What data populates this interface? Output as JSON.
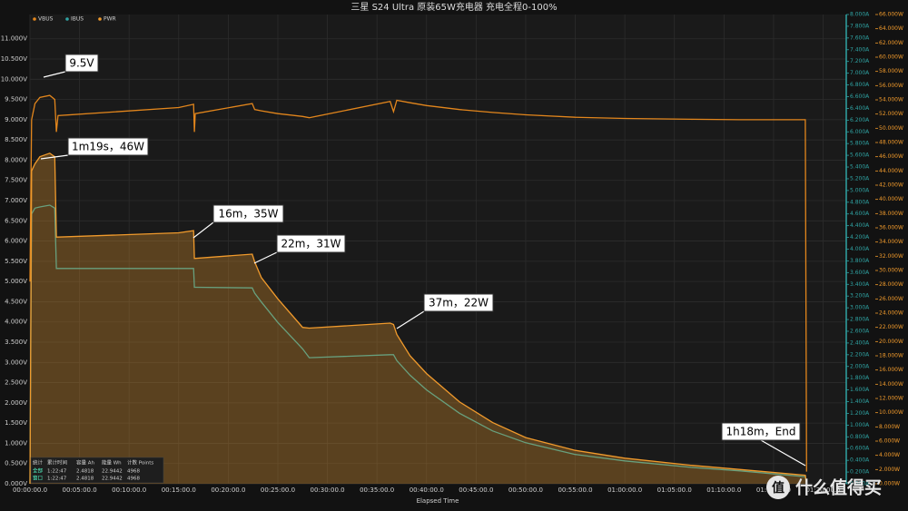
{
  "chart_data": {
    "type": "line",
    "title": "三星 S24 Ultra 原装65W充电器 充电全程0-100%",
    "x_label": "Elapsed Time",
    "x": [
      0,
      10,
      30,
      60,
      120,
      150,
      160,
      170,
      900,
      990,
      995,
      1000,
      1345,
      1360,
      1400,
      1500,
      1650,
      1690,
      2180,
      2200,
      2220,
      2300,
      2400,
      2600,
      2800,
      3000,
      3300,
      3600,
      4000,
      4300,
      4692,
      4700
    ],
    "xlim": [
      0,
      4940
    ],
    "xticks": [
      {
        "value": 0,
        "label": "00:00:00.0"
      },
      {
        "value": 300,
        "label": "00:05:00.0"
      },
      {
        "value": 600,
        "label": "00:10:00.0"
      },
      {
        "value": 900,
        "label": "00:15:00.0"
      },
      {
        "value": 1200,
        "label": "00:20:00.0"
      },
      {
        "value": 1500,
        "label": "00:25:00.0"
      },
      {
        "value": 1800,
        "label": "00:30:00.0"
      },
      {
        "value": 2100,
        "label": "00:35:00.0"
      },
      {
        "value": 2400,
        "label": "00:40:00.0"
      },
      {
        "value": 2700,
        "label": "00:45:00.0"
      },
      {
        "value": 3000,
        "label": "00:50:00.0"
      },
      {
        "value": 3300,
        "label": "00:55:00.0"
      },
      {
        "value": 3600,
        "label": "01:00:00.0"
      },
      {
        "value": 3900,
        "label": "01:05:00.0"
      },
      {
        "value": 4200,
        "label": "01:10:00.0"
      },
      {
        "value": 4500,
        "label": "01:15:00.0"
      },
      {
        "value": 4800,
        "label": "01:20:00.0"
      }
    ],
    "ylim": [
      0,
      11.6
    ],
    "yticks": [
      {
        "value": 0,
        "label": "0.000V"
      },
      {
        "value": 0.5,
        "label": "0.500V"
      },
      {
        "value": 1,
        "label": "1.000V"
      },
      {
        "value": 1.5,
        "label": "1.500V"
      },
      {
        "value": 2,
        "label": "2.000V"
      },
      {
        "value": 2.5,
        "label": "2.500V"
      },
      {
        "value": 3,
        "label": "3.000V"
      },
      {
        "value": 3.5,
        "label": "3.500V"
      },
      {
        "value": 4,
        "label": "4.000V"
      },
      {
        "value": 4.5,
        "label": "4.500V"
      },
      {
        "value": 5,
        "label": "5.000V"
      },
      {
        "value": 5.5,
        "label": "5.500V"
      },
      {
        "value": 6,
        "label": "6.000V"
      },
      {
        "value": 6.5,
        "label": "6.500V"
      },
      {
        "value": 7,
        "label": "7.000V"
      },
      {
        "value": 7.5,
        "label": "7.500V"
      },
      {
        "value": 8,
        "label": "8.000V"
      },
      {
        "value": 8.5,
        "label": "8.500V"
      },
      {
        "value": 9,
        "label": "9.000V"
      },
      {
        "value": 9.5,
        "label": "9.500V"
      },
      {
        "value": 10,
        "label": "10.000V"
      },
      {
        "value": 10.5,
        "label": "10.500V"
      },
      {
        "value": 11,
        "label": "11.000V"
      }
    ],
    "y2lim": [
      0,
      8
    ],
    "y2ticks": [
      {
        "value": 0,
        "label": "0.000A"
      },
      {
        "value": 0.2,
        "label": "0.200A"
      },
      {
        "value": 0.4,
        "label": "0.400A"
      },
      {
        "value": 0.6,
        "label": "0.600A"
      },
      {
        "value": 0.8,
        "label": "0.800A"
      },
      {
        "value": 1,
        "label": "1.000A"
      },
      {
        "value": 1.2,
        "label": "1.200A"
      },
      {
        "value": 1.4,
        "label": "1.400A"
      },
      {
        "value": 1.6,
        "label": "1.600A"
      },
      {
        "value": 1.8,
        "label": "1.800A"
      },
      {
        "value": 2,
        "label": "2.000A"
      },
      {
        "value": 2.2,
        "label": "2.200A"
      },
      {
        "value": 2.4,
        "label": "2.400A"
      },
      {
        "value": 2.6,
        "label": "2.600A"
      },
      {
        "value": 2.8,
        "label": "2.800A"
      },
      {
        "value": 3,
        "label": "3.000A"
      },
      {
        "value": 3.2,
        "label": "3.200A"
      },
      {
        "value": 3.4,
        "label": "3.400A"
      },
      {
        "value": 3.6,
        "label": "3.600A"
      },
      {
        "value": 3.8,
        "label": "3.800A"
      },
      {
        "value": 4,
        "label": "4.000A"
      },
      {
        "value": 4.2,
        "label": "4.200A"
      },
      {
        "value": 4.4,
        "label": "4.400A"
      },
      {
        "value": 4.6,
        "label": "4.600A"
      },
      {
        "value": 4.8,
        "label": "4.800A"
      },
      {
        "value": 5,
        "label": "5.000A"
      },
      {
        "value": 5.2,
        "label": "5.200A"
      },
      {
        "value": 5.4,
        "label": "5.400A"
      },
      {
        "value": 5.6,
        "label": "5.600A"
      },
      {
        "value": 5.8,
        "label": "5.800A"
      },
      {
        "value": 6,
        "label": "6.000A"
      },
      {
        "value": 6.2,
        "label": "6.200A"
      },
      {
        "value": 6.4,
        "label": "6.400A"
      },
      {
        "value": 6.6,
        "label": "6.600A"
      },
      {
        "value": 6.8,
        "label": "6.800A"
      },
      {
        "value": 7,
        "label": "7.000A"
      },
      {
        "value": 7.2,
        "label": "7.200A"
      },
      {
        "value": 7.4,
        "label": "7.400A"
      },
      {
        "value": 7.6,
        "label": "7.600A"
      },
      {
        "value": 7.8,
        "label": "7.800A"
      },
      {
        "value": 8,
        "label": "8.000A"
      }
    ],
    "y3lim": [
      0,
      66
    ],
    "y3ticks": [
      {
        "value": 0,
        "label": "0.000W"
      },
      {
        "value": 2,
        "label": "2.000W"
      },
      {
        "value": 4,
        "label": "4.000W"
      },
      {
        "value": 6,
        "label": "6.000W"
      },
      {
        "value": 8,
        "label": "8.000W"
      },
      {
        "value": 10,
        "label": "10.000W"
      },
      {
        "value": 12,
        "label": "12.000W"
      },
      {
        "value": 14,
        "label": "14.000W"
      },
      {
        "value": 16,
        "label": "16.000W"
      },
      {
        "value": 18,
        "label": "18.000W"
      },
      {
        "value": 20,
        "label": "20.000W"
      },
      {
        "value": 22,
        "label": "22.000W"
      },
      {
        "value": 24,
        "label": "24.000W"
      },
      {
        "value": 26,
        "label": "26.000W"
      },
      {
        "value": 28,
        "label": "28.000W"
      },
      {
        "value": 30,
        "label": "30.000W"
      },
      {
        "value": 32,
        "label": "32.000W"
      },
      {
        "value": 34,
        "label": "34.000W"
      },
      {
        "value": 36,
        "label": "36.000W"
      },
      {
        "value": 38,
        "label": "38.000W"
      },
      {
        "value": 40,
        "label": "40.000W"
      },
      {
        "value": 42,
        "label": "42.000W"
      },
      {
        "value": 44,
        "label": "44.000W"
      },
      {
        "value": 46,
        "label": "46.000W"
      },
      {
        "value": 48,
        "label": "48.000W"
      },
      {
        "value": 50,
        "label": "50.000W"
      },
      {
        "value": 52,
        "label": "52.000W"
      },
      {
        "value": 54,
        "label": "54.000W"
      },
      {
        "value": 56,
        "label": "56.000W"
      },
      {
        "value": 58,
        "label": "58.000W"
      },
      {
        "value": 60,
        "label": "60.000W"
      },
      {
        "value": 62,
        "label": "62.000W"
      },
      {
        "value": 64,
        "label": "64.000W"
      },
      {
        "value": 66,
        "label": "66.000W"
      }
    ],
    "grid": true,
    "series": [
      {
        "name": "VBUS",
        "color": "#e3861c",
        "values": [
          5.0,
          9.0,
          9.4,
          9.55,
          9.6,
          9.5,
          8.7,
          9.1,
          9.3,
          9.38,
          8.7,
          9.15,
          9.4,
          9.25,
          9.22,
          9.15,
          9.08,
          9.05,
          9.45,
          9.2,
          9.48,
          9.42,
          9.35,
          9.25,
          9.18,
          9.12,
          9.06,
          9.03,
          9.01,
          9.0,
          9.0,
          0.3
        ]
      },
      {
        "name": "IBUS",
        "color": "#2fa3a3",
        "axis": "y2",
        "values": [
          0,
          4.6,
          4.7,
          4.72,
          4.75,
          4.7,
          3.67,
          3.67,
          3.67,
          3.67,
          3.35,
          3.35,
          3.34,
          3.25,
          3.1,
          2.75,
          2.3,
          2.15,
          2.2,
          2.2,
          2.1,
          1.85,
          1.6,
          1.2,
          0.9,
          0.7,
          0.5,
          0.39,
          0.28,
          0.22,
          0.12,
          0
        ]
      },
      {
        "name": "PWR",
        "color": "#f09a2c",
        "axis": "y3",
        "fill": true,
        "values": [
          0,
          44,
          45,
          46,
          46.5,
          46,
          34.7,
          34.7,
          35.3,
          35.6,
          31.7,
          31.7,
          32.3,
          31.2,
          29,
          26,
          22,
          21.9,
          22.6,
          22.4,
          21,
          18,
          15.5,
          11.5,
          8.6,
          6.5,
          4.7,
          3.6,
          2.6,
          2.0,
          1.2,
          0
        ]
      }
    ],
    "annotations": [
      "9.5V",
      "1m19s，46W",
      "16m，35W",
      "22m，31W",
      "37m，22W",
      "1h18m，End"
    ],
    "stats": {
      "header": [
        "统计",
        "累计时间",
        "容量 Ah",
        "能量 Wh",
        "计数 Points"
      ],
      "rows": [
        [
          "全部",
          "1:22:47",
          "2.4818",
          "22.9442",
          "4968"
        ],
        [
          "窗口",
          "1:22:47",
          "2.4818",
          "22.9442",
          "4968"
        ]
      ]
    },
    "watermark_logo": "值",
    "watermark": "什么值得买"
  }
}
